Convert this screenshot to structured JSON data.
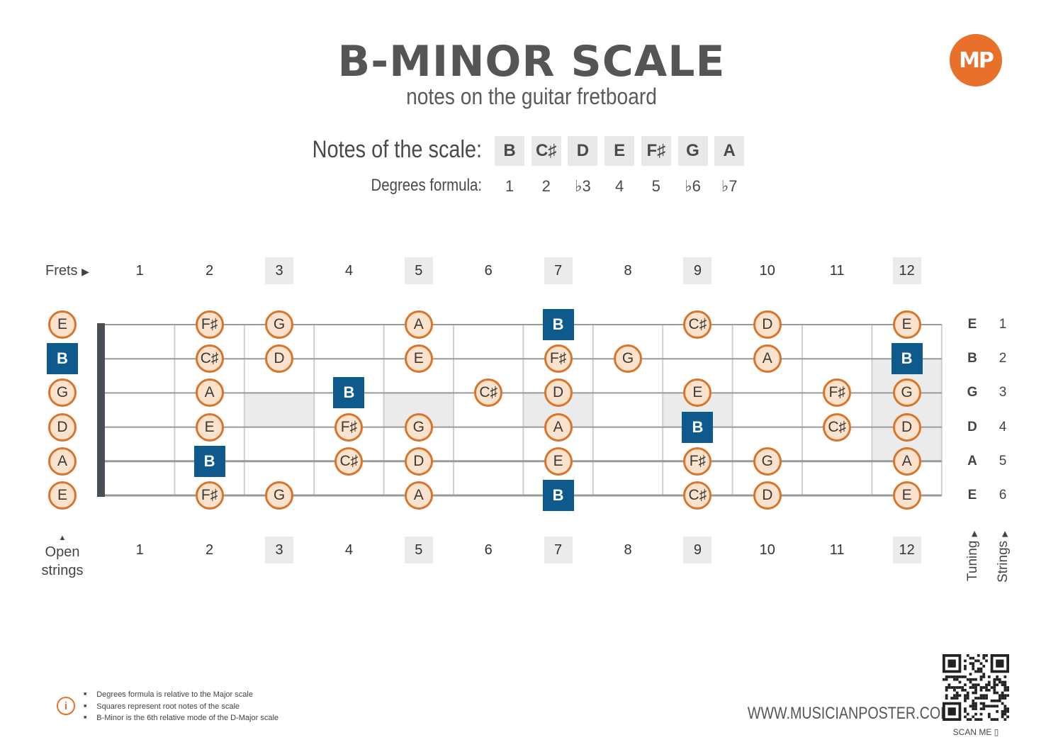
{
  "title": "B-MINOR SCALE",
  "subtitle": "notes on the guitar fretboard",
  "logo_text": "MP",
  "accent_color": "#e8702a",
  "root_color": "#0f5a8c",
  "notes_label": "Notes of the scale:",
  "degrees_label": "Degrees formula:",
  "scale_notes": [
    "B",
    "C♯",
    "D",
    "E",
    "F♯",
    "G",
    "A"
  ],
  "degrees": [
    "1",
    "2",
    "♭3",
    "4",
    "5",
    "♭6",
    "♭7"
  ],
  "frets_label": "Frets",
  "fret_numbers": [
    "1",
    "2",
    "3",
    "4",
    "5",
    "6",
    "7",
    "8",
    "9",
    "10",
    "11",
    "12"
  ],
  "marked_frets": [
    3,
    5,
    7,
    9,
    12
  ],
  "open_strings_label": [
    "Open",
    "strings"
  ],
  "tuning_label": "Tuning",
  "strings_label": "Strings",
  "strings": [
    {
      "tuning": "E",
      "number": "1"
    },
    {
      "tuning": "B",
      "number": "2"
    },
    {
      "tuning": "G",
      "number": "3"
    },
    {
      "tuning": "D",
      "number": "4"
    },
    {
      "tuning": "A",
      "number": "5"
    },
    {
      "tuning": "E",
      "number": "6"
    }
  ],
  "fretboard_notes": [
    {
      "string": 1,
      "fret": 0,
      "note": "E",
      "root": false
    },
    {
      "string": 1,
      "fret": 2,
      "note": "F♯",
      "root": false
    },
    {
      "string": 1,
      "fret": 3,
      "note": "G",
      "root": false
    },
    {
      "string": 1,
      "fret": 5,
      "note": "A",
      "root": false
    },
    {
      "string": 1,
      "fret": 7,
      "note": "B",
      "root": true
    },
    {
      "string": 1,
      "fret": 9,
      "note": "C♯",
      "root": false
    },
    {
      "string": 1,
      "fret": 10,
      "note": "D",
      "root": false
    },
    {
      "string": 1,
      "fret": 12,
      "note": "E",
      "root": false
    },
    {
      "string": 2,
      "fret": 0,
      "note": "B",
      "root": true
    },
    {
      "string": 2,
      "fret": 2,
      "note": "C♯",
      "root": false
    },
    {
      "string": 2,
      "fret": 3,
      "note": "D",
      "root": false
    },
    {
      "string": 2,
      "fret": 5,
      "note": "E",
      "root": false
    },
    {
      "string": 2,
      "fret": 7,
      "note": "F♯",
      "root": false
    },
    {
      "string": 2,
      "fret": 8,
      "note": "G",
      "root": false
    },
    {
      "string": 2,
      "fret": 10,
      "note": "A",
      "root": false
    },
    {
      "string": 2,
      "fret": 12,
      "note": "B",
      "root": true
    },
    {
      "string": 3,
      "fret": 0,
      "note": "G",
      "root": false
    },
    {
      "string": 3,
      "fret": 2,
      "note": "A",
      "root": false
    },
    {
      "string": 3,
      "fret": 4,
      "note": "B",
      "root": true
    },
    {
      "string": 3,
      "fret": 6,
      "note": "C♯",
      "root": false
    },
    {
      "string": 3,
      "fret": 7,
      "note": "D",
      "root": false
    },
    {
      "string": 3,
      "fret": 9,
      "note": "E",
      "root": false
    },
    {
      "string": 3,
      "fret": 11,
      "note": "F♯",
      "root": false
    },
    {
      "string": 3,
      "fret": 12,
      "note": "G",
      "root": false
    },
    {
      "string": 4,
      "fret": 0,
      "note": "D",
      "root": false
    },
    {
      "string": 4,
      "fret": 2,
      "note": "E",
      "root": false
    },
    {
      "string": 4,
      "fret": 4,
      "note": "F♯",
      "root": false
    },
    {
      "string": 4,
      "fret": 5,
      "note": "G",
      "root": false
    },
    {
      "string": 4,
      "fret": 7,
      "note": "A",
      "root": false
    },
    {
      "string": 4,
      "fret": 9,
      "note": "B",
      "root": true
    },
    {
      "string": 4,
      "fret": 11,
      "note": "C♯",
      "root": false
    },
    {
      "string": 4,
      "fret": 12,
      "note": "D",
      "root": false
    },
    {
      "string": 5,
      "fret": 0,
      "note": "A",
      "root": false
    },
    {
      "string": 5,
      "fret": 2,
      "note": "B",
      "root": true
    },
    {
      "string": 5,
      "fret": 4,
      "note": "C♯",
      "root": false
    },
    {
      "string": 5,
      "fret": 5,
      "note": "D",
      "root": false
    },
    {
      "string": 5,
      "fret": 7,
      "note": "E",
      "root": false
    },
    {
      "string": 5,
      "fret": 9,
      "note": "F♯",
      "root": false
    },
    {
      "string": 5,
      "fret": 10,
      "note": "G",
      "root": false
    },
    {
      "string": 5,
      "fret": 12,
      "note": "A",
      "root": false
    },
    {
      "string": 6,
      "fret": 0,
      "note": "E",
      "root": false
    },
    {
      "string": 6,
      "fret": 2,
      "note": "F♯",
      "root": false
    },
    {
      "string": 6,
      "fret": 3,
      "note": "G",
      "root": false
    },
    {
      "string": 6,
      "fret": 5,
      "note": "A",
      "root": false
    },
    {
      "string": 6,
      "fret": 7,
      "note": "B",
      "root": true
    },
    {
      "string": 6,
      "fret": 9,
      "note": "C♯",
      "root": false
    },
    {
      "string": 6,
      "fret": 10,
      "note": "D",
      "root": false
    },
    {
      "string": 6,
      "fret": 12,
      "note": "E",
      "root": false
    }
  ],
  "footnotes": [
    "Degrees formula is relative to the Major scale",
    "Squares represent root notes of the scale",
    "B-Minor is the 6th relative mode of the D-Major scale"
  ],
  "info_icon": "info-icon",
  "website": "WWW.MUSICIANPOSTER.COM",
  "scan_label": "SCAN ME"
}
